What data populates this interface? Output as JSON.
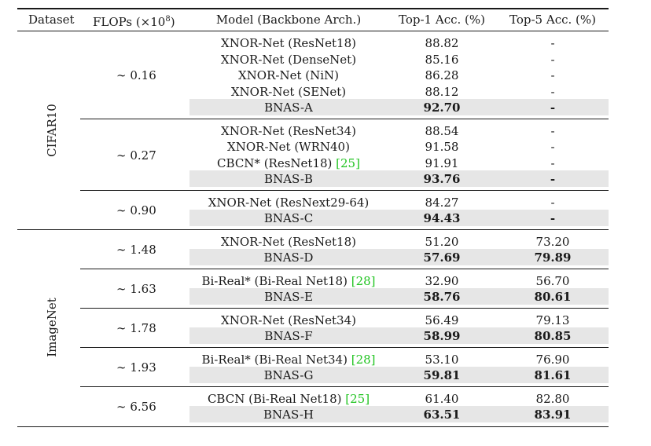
{
  "header": {
    "dataset": "Dataset",
    "flops": "FLOPs (×10",
    "flops_exp": "8",
    "flops_close": ")",
    "model": "Model (Backbone Arch.)",
    "top1": "Top-1 Acc. (%)",
    "top5": "Top-5 Acc. (%)"
  },
  "groups": [
    {
      "dataset": "CIFAR10",
      "blocks": [
        {
          "flops": "∼ 0.16",
          "rows": [
            {
              "model": "XNOR-Net (ResNet18)",
              "ref": "",
              "top1": "88.82",
              "top5": "-"
            },
            {
              "model": "XNOR-Net (DenseNet)",
              "ref": "",
              "top1": "85.16",
              "top5": "-"
            },
            {
              "model": "XNOR-Net (NiN)",
              "ref": "",
              "top1": "86.28",
              "top5": "-"
            },
            {
              "model": "XNOR-Net (SENet)",
              "ref": "",
              "top1": "88.12",
              "top5": "-"
            },
            {
              "model": "BNAS-A",
              "ref": "",
              "top1": "92.70",
              "top5": "-",
              "highlight": true
            }
          ]
        },
        {
          "flops": "∼ 0.27",
          "rows": [
            {
              "model": "XNOR-Net (ResNet34)",
              "ref": "",
              "top1": "88.54",
              "top5": "-"
            },
            {
              "model": "XNOR-Net (WRN40)",
              "ref": "",
              "top1": "91.58",
              "top5": "-"
            },
            {
              "model": "CBCN* (ResNet18)",
              "ref": "[25]",
              "top1": "91.91",
              "top5": "-"
            },
            {
              "model": "BNAS-B",
              "ref": "",
              "top1": "93.76",
              "top5": "-",
              "highlight": true
            }
          ]
        },
        {
          "flops": "∼ 0.90",
          "rows": [
            {
              "model": "XNOR-Net (ResNext29-64)",
              "ref": "",
              "top1": "84.27",
              "top5": "-"
            },
            {
              "model": "BNAS-C",
              "ref": "",
              "top1": "94.43",
              "top5": "-",
              "highlight": true
            }
          ]
        }
      ]
    },
    {
      "dataset": "ImageNet",
      "blocks": [
        {
          "flops": "∼ 1.48",
          "rows": [
            {
              "model": "XNOR-Net (ResNet18)",
              "ref": "",
              "top1": "51.20",
              "top5": "73.20"
            },
            {
              "model": "BNAS-D",
              "ref": "",
              "top1": "57.69",
              "top5": "79.89",
              "highlight": true
            }
          ]
        },
        {
          "flops": "∼ 1.63",
          "rows": [
            {
              "model": "Bi-Real* (Bi-Real Net18)",
              "ref": "[28]",
              "top1": "32.90",
              "top5": "56.70"
            },
            {
              "model": "BNAS-E",
              "ref": "",
              "top1": "58.76",
              "top5": "80.61",
              "highlight": true
            }
          ]
        },
        {
          "flops": "∼ 1.78",
          "rows": [
            {
              "model": "XNOR-Net (ResNet34)",
              "ref": "",
              "top1": "56.49",
              "top5": "79.13"
            },
            {
              "model": "BNAS-F",
              "ref": "",
              "top1": "58.99",
              "top5": "80.85",
              "highlight": true
            }
          ]
        },
        {
          "flops": "∼ 1.93",
          "rows": [
            {
              "model": "Bi-Real* (Bi-Real Net34)",
              "ref": "[28]",
              "top1": "53.10",
              "top5": "76.90"
            },
            {
              "model": "BNAS-G",
              "ref": "",
              "top1": "59.81",
              "top5": "81.61",
              "highlight": true
            }
          ]
        },
        {
          "flops": "∼ 6.56",
          "rows": [
            {
              "model": "CBCN (Bi-Real Net18)",
              "ref": "[25]",
              "top1": "61.40",
              "top5": "82.80"
            },
            {
              "model": "BNAS-H",
              "ref": "",
              "top1": "63.51",
              "top5": "83.91",
              "highlight": true
            }
          ]
        }
      ]
    }
  ],
  "colors": {
    "highlight": "#e6e6e6",
    "citation": "#22c422"
  }
}
